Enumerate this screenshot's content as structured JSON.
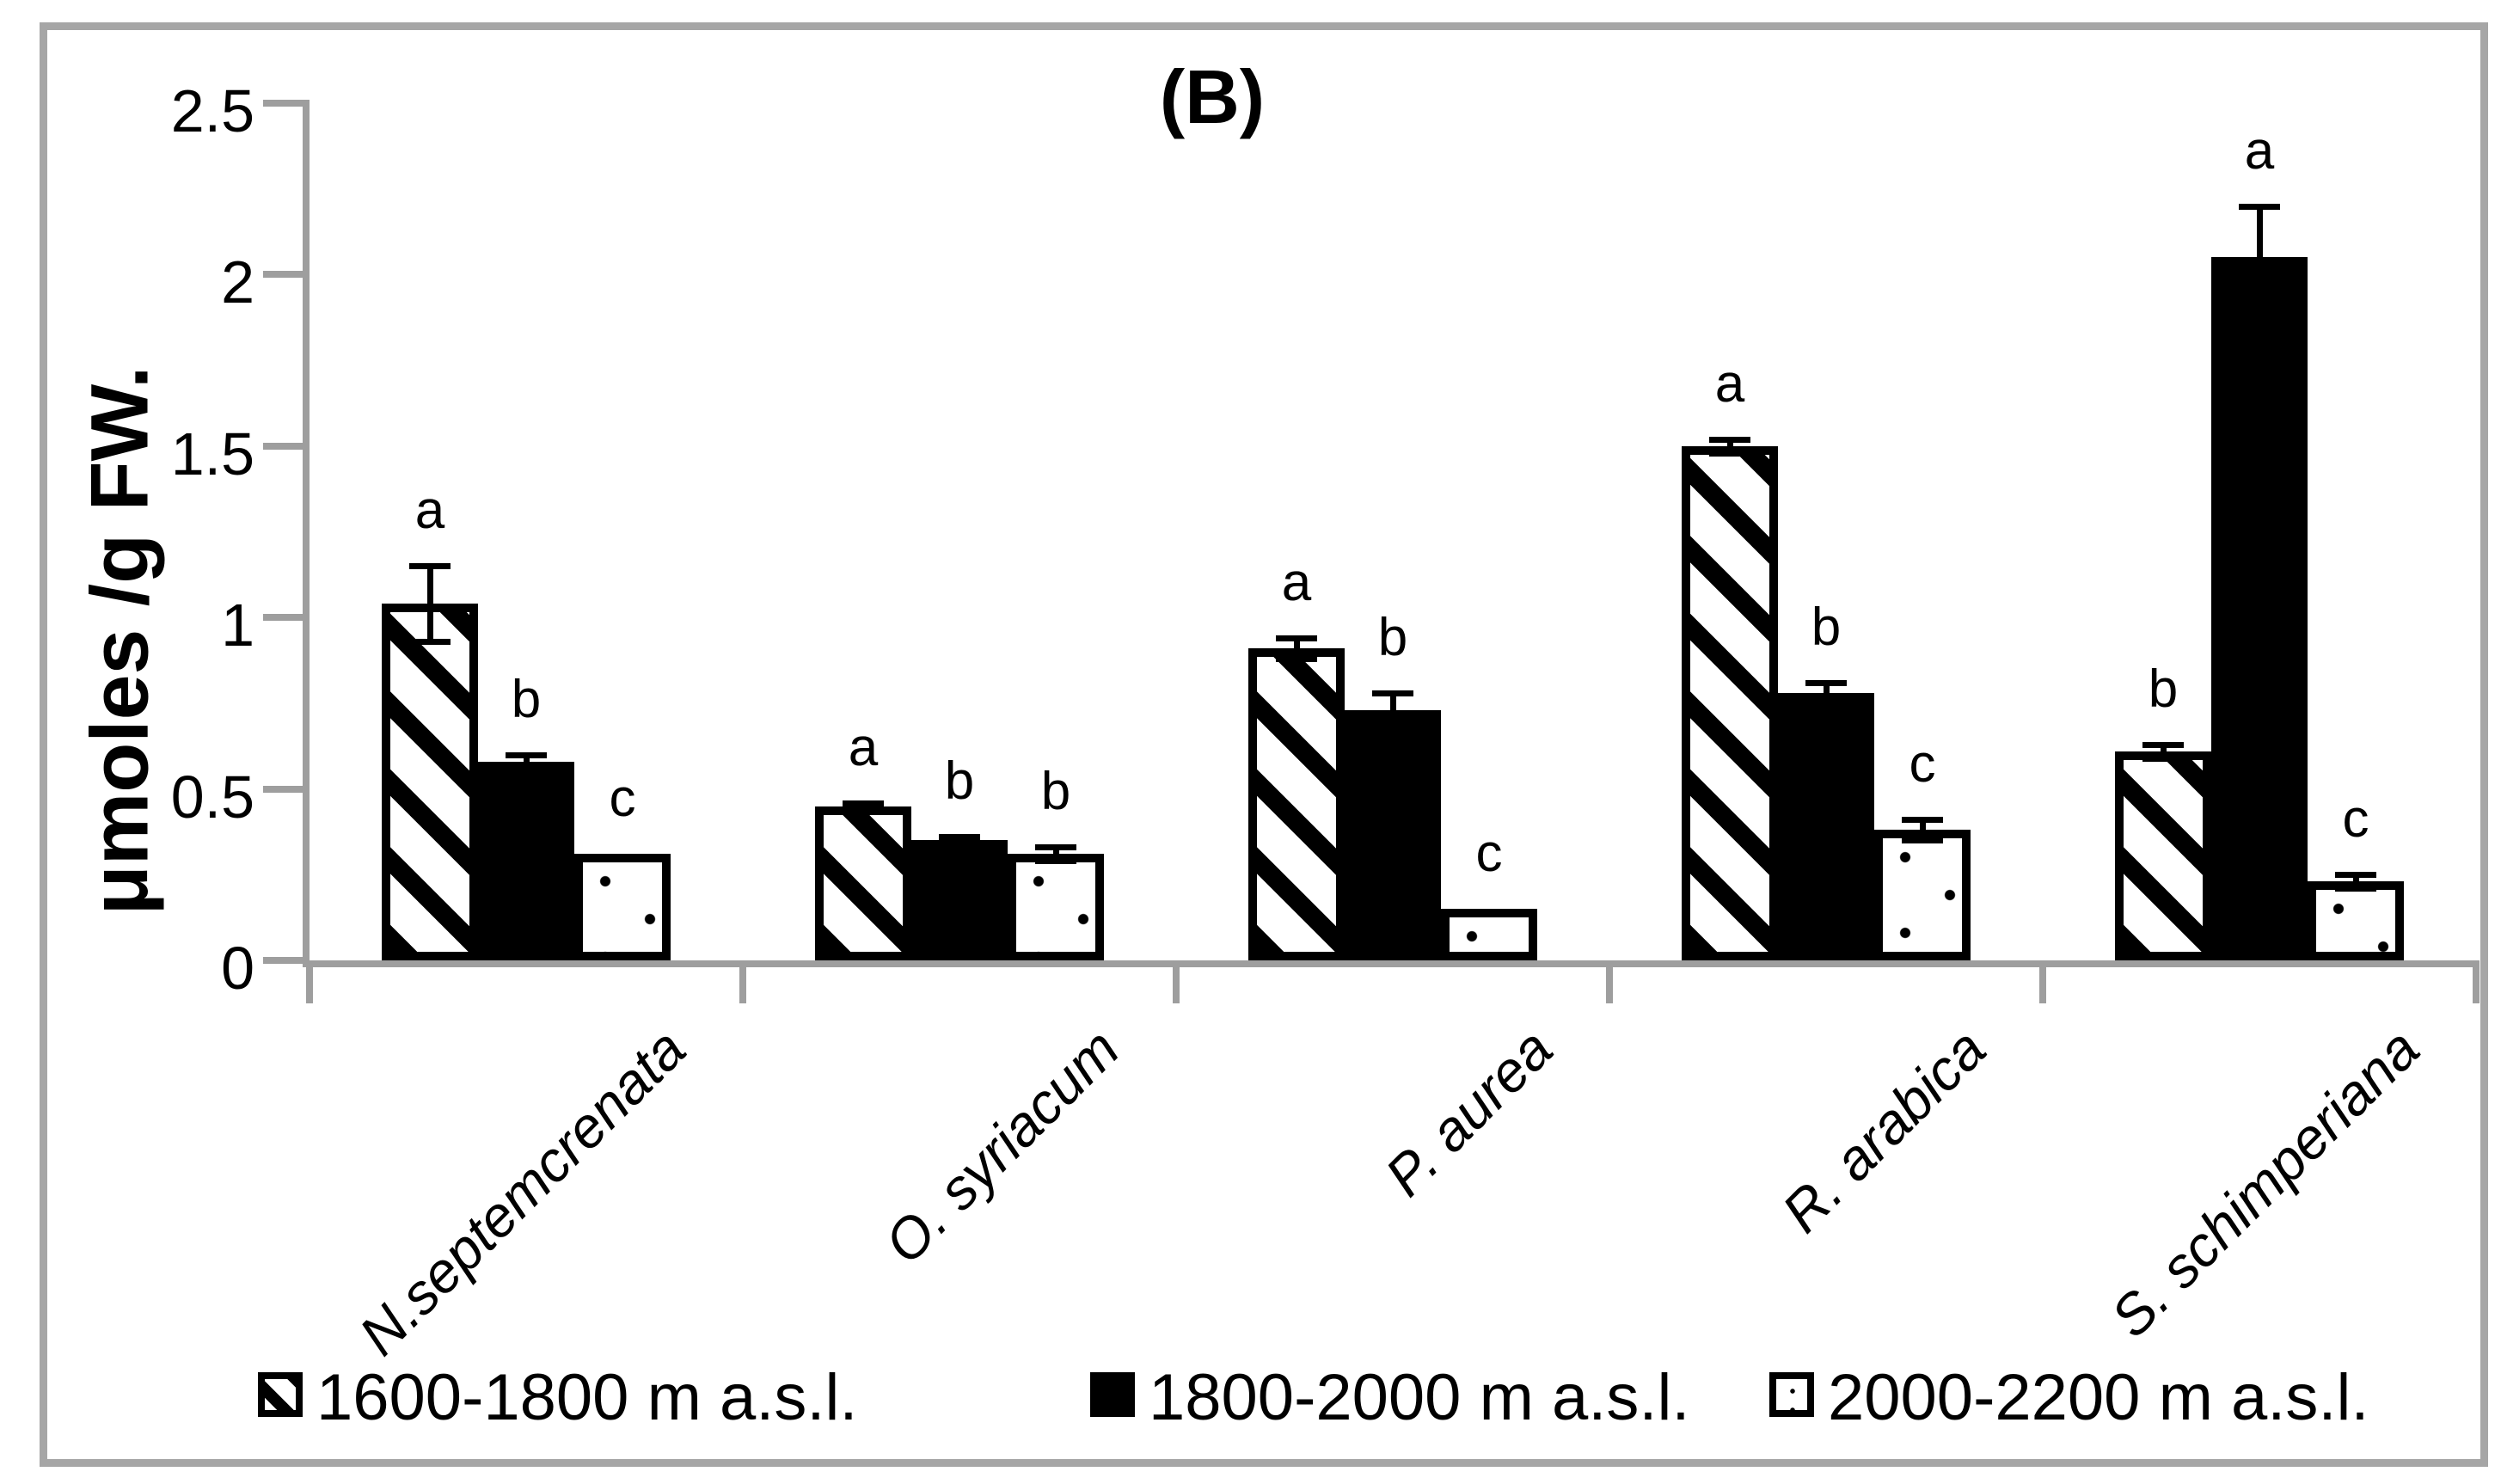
{
  "figure": {
    "panel_label": "(B)"
  },
  "chart_data": {
    "type": "bar",
    "title": "(B)",
    "xlabel": "",
    "ylabel": "μmoles /g FW.",
    "ylim": [
      0,
      2.5
    ],
    "ytick_step": 0.5,
    "ytick_labels": [
      "0",
      "0.5",
      "1",
      "1.5",
      "2",
      "2.5"
    ],
    "grid": false,
    "legend_position": "bottom",
    "categories": [
      "N.septemcrenata",
      "O. syriacum",
      "P. aurea",
      "R. arabica",
      "S. schimperiana"
    ],
    "series": [
      {
        "name": "1600-1800 m a.s.l.",
        "pattern": "diagonal-hatch",
        "values": [
          1.04,
          0.45,
          0.91,
          1.5,
          0.61
        ],
        "errors": [
          0.11,
          0.01,
          0.03,
          0.02,
          0.02
        ],
        "letters": [
          "a",
          "a",
          "a",
          "a",
          "b"
        ]
      },
      {
        "name": "1800-2000 m a.s.l.",
        "pattern": "solid-black",
        "values": [
          0.58,
          0.35,
          0.73,
          0.78,
          2.05
        ],
        "errors": [
          0.02,
          0.01,
          0.05,
          0.03,
          0.15
        ],
        "letters": [
          "b",
          "b",
          "b",
          "b",
          "a"
        ]
      },
      {
        "name": "2000-2200 m a.s.l.",
        "pattern": "white-dotted",
        "values": [
          0.31,
          0.31,
          0.15,
          0.38,
          0.23
        ],
        "errors": [
          0,
          0.02,
          0,
          0.03,
          0.02
        ],
        "letters": [
          "c",
          "b",
          "c",
          "c",
          "c"
        ]
      }
    ],
    "colors": {
      "bar_ink": "#000000",
      "axis_line": "#9e9e9e",
      "figure_border": "#a6a6a6",
      "background": "#ffffff"
    }
  }
}
